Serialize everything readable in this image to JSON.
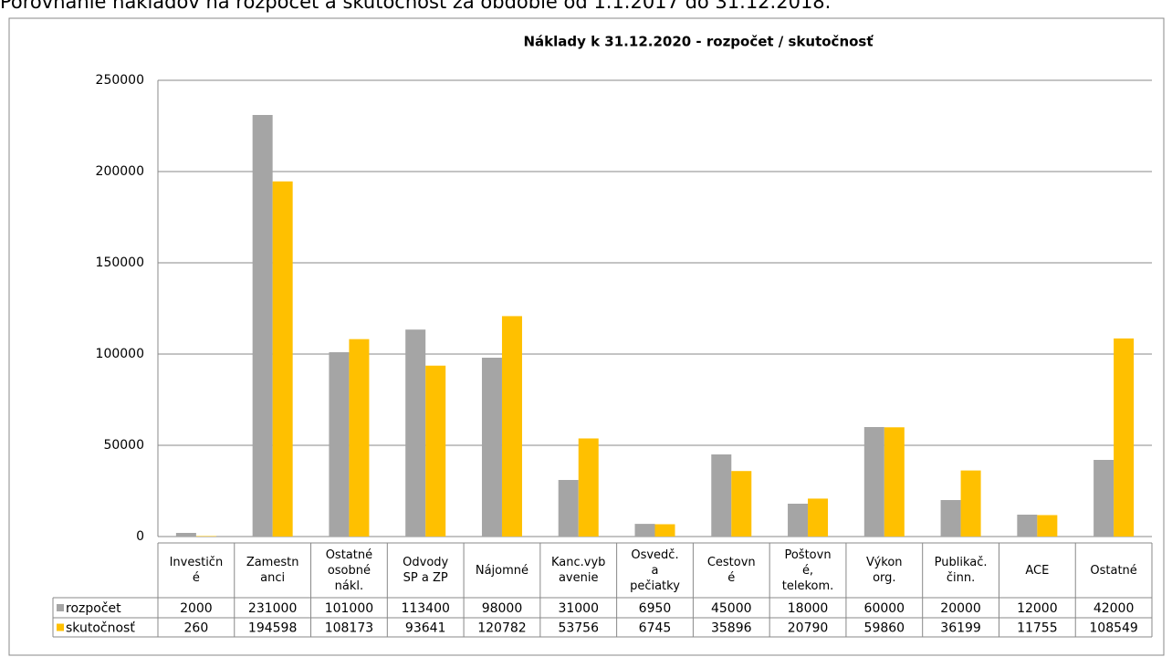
{
  "page_heading": "Porovnanie nákladov na rozpočet a skutočnosť za obdobie od 1.1.2017 do 31.12.2018.",
  "chart_data": {
    "type": "bar",
    "title": "Náklady k 31.12.2020  - rozpočet / skutočnosť",
    "categories": [
      "Investičn\né",
      "Zamestn\nanci",
      "Ostatné\nosobné\nnákl.",
      "Odvody\nSP a ZP",
      "Nájomné",
      "Kanc.vyb\navenie",
      "Osvedč.\na\npečiatky",
      "Cestovn\né",
      "Poštovn\né,\ntelekom.",
      "Výkon\norg.",
      "Publikač.\nčinn.",
      "ACE",
      "Ostatné"
    ],
    "series": [
      {
        "name": "rozpočet",
        "color": "#a5a5a5",
        "values": [
          2000,
          231000,
          101000,
          113400,
          98000,
          31000,
          6950,
          45000,
          18000,
          60000,
          20000,
          12000,
          42000
        ]
      },
      {
        "name": "skutočnosť",
        "color": "#ffc000",
        "values": [
          260,
          194598,
          108173,
          93641,
          120782,
          53756,
          6745,
          35896,
          20790,
          59860,
          36199,
          11755,
          108549
        ]
      }
    ],
    "ylim": [
      0,
      250000
    ],
    "yticks": [
      0,
      50000,
      100000,
      150000,
      200000,
      250000
    ],
    "grid": true
  }
}
